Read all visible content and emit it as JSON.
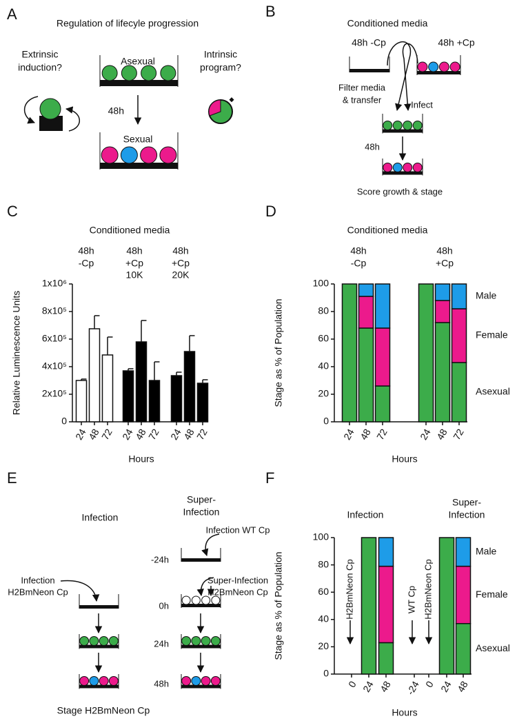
{
  "panels": {
    "A": {
      "letter": "A",
      "title": "Regulation of lifecyle progression",
      "extrinsic": [
        "Extrinsic",
        "induction?"
      ],
      "intrinsic": [
        "Intrinsic",
        "program?"
      ],
      "asexual": "Asexual",
      "time": "48h",
      "sexual": "Sexual"
    },
    "B": {
      "letter": "B",
      "title": "Conditioned media",
      "left_well": "48h -Cp",
      "right_well": "48h +Cp",
      "filter": [
        "Filter media",
        "& transfer"
      ],
      "infect": "Infect",
      "time": "48h",
      "score": "Score growth & stage"
    },
    "C": {
      "letter": "C"
    },
    "D": {
      "letter": "D"
    },
    "E": {
      "letter": "E",
      "infection": "Infection",
      "super": [
        "Super-",
        "Infection"
      ],
      "wt": "Infection WT Cp",
      "super_label": [
        "Super-Infection",
        "H2BmNeon Cp"
      ],
      "infection_label": [
        "Infection",
        "H2BmNeon Cp"
      ],
      "times": [
        "-24h",
        "0h",
        "24h",
        "48h"
      ],
      "stage": "Stage H2BmNeon Cp"
    },
    "F": {
      "letter": "F"
    }
  },
  "chart_data": [
    {
      "type": "bar",
      "title": "Conditioned media",
      "ylabel": "Relative Luminescence Units",
      "xlabel": "Hours",
      "ylim": [
        0,
        1000000
      ],
      "yticks": [
        0,
        {
          "value": 200000,
          "label": "2x10⁵"
        },
        {
          "value": 400000,
          "label": "4x10⁵"
        },
        {
          "value": 600000,
          "label": "6x10⁵"
        },
        {
          "value": 800000,
          "label": "8x10⁵"
        },
        {
          "value": 1000000,
          "label": "1x10⁶"
        }
      ],
      "groups": [
        {
          "label": [
            "48h",
            "-Cp"
          ],
          "color": "#ffffff",
          "categories": [
            "24",
            "48",
            "72"
          ],
          "values": [
            300000,
            675000,
            485000
          ],
          "errors": [
            10000,
            95000,
            130000
          ]
        },
        {
          "label": [
            "48h",
            "+Cp",
            "10K"
          ],
          "color": "#000000",
          "categories": [
            "24",
            "48",
            "72"
          ],
          "values": [
            370000,
            580000,
            300000
          ],
          "errors": [
            15000,
            155000,
            135000
          ]
        },
        {
          "label": [
            "48h",
            "+Cp",
            "20K"
          ],
          "color": "#000000",
          "categories": [
            "24",
            "48",
            "72"
          ],
          "values": [
            335000,
            510000,
            280000
          ],
          "errors": [
            25000,
            115000,
            25000
          ]
        }
      ]
    },
    {
      "type": "stacked_bar",
      "title": "Conditioned media",
      "ylabel": "Stage as % of Population",
      "xlabel": "Hours",
      "ylim": [
        0,
        100
      ],
      "yticks": [
        0,
        20,
        40,
        60,
        80,
        100
      ],
      "groups": [
        {
          "label": [
            "48h",
            "-Cp"
          ]
        },
        {
          "label": [
            "48h",
            "+Cp"
          ]
        }
      ],
      "categories": [
        "24",
        "48",
        "72",
        "24",
        "48",
        "72"
      ],
      "series": [
        {
          "name": "Asexual",
          "color": "#3cac4a",
          "values": [
            100,
            68,
            26,
            100,
            72,
            43
          ]
        },
        {
          "name": "Female",
          "color": "#ec1a8c",
          "values": [
            0,
            23,
            42,
            0,
            16,
            39
          ]
        },
        {
          "name": "Male",
          "color": "#1e9ce8",
          "values": [
            0,
            9,
            32,
            0,
            12,
            18
          ]
        }
      ]
    },
    {
      "type": "stacked_bar",
      "ylabel": "Stage as % of Population",
      "xlabel": "Hours",
      "ylim": [
        0,
        100
      ],
      "yticks": [
        0,
        20,
        40,
        60,
        80,
        100
      ],
      "groups": [
        {
          "label": [
            "Infection"
          ]
        },
        {
          "label": [
            "Super-",
            "Infection"
          ]
        }
      ],
      "categories": [
        "0",
        "24",
        "48",
        "-24",
        "0",
        "24",
        "48"
      ],
      "annotations": [
        "H2BmNeon Cp",
        "WT Cp",
        "H2BmNeon Cp"
      ],
      "series": [
        {
          "name": "Asexual",
          "color": "#3cac4a",
          "values": [
            null,
            100,
            23,
            null,
            null,
            100,
            37
          ]
        },
        {
          "name": "Female",
          "color": "#ec1a8c",
          "values": [
            null,
            0,
            56,
            null,
            null,
            0,
            42
          ]
        },
        {
          "name": "Male",
          "color": "#1e9ce8",
          "values": [
            null,
            0,
            21,
            null,
            null,
            0,
            21
          ]
        }
      ]
    }
  ]
}
